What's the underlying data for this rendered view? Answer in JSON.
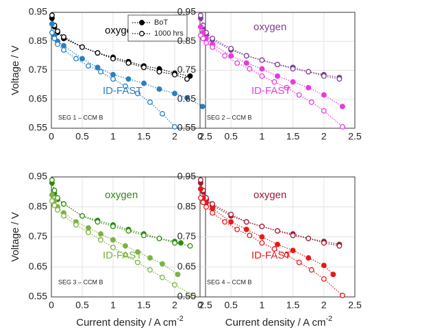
{
  "chart_data": [
    {
      "type": "line",
      "xlim": [
        0,
        2.5
      ],
      "ylim": [
        0.55,
        0.95
      ],
      "xticks": [
        0,
        0.5,
        1,
        1.5,
        2,
        2.5
      ],
      "yticks": [
        0.55,
        0.65,
        0.75,
        0.85,
        0.95
      ],
      "grid": true,
      "ylabel": "Voltage / V",
      "annotations": [
        "oxygen",
        "ID-FAST",
        "SEG 1 – CCM B"
      ],
      "legend": [
        {
          "name": "BoT",
          "marker": "filled",
          "color": "#000000"
        },
        {
          "name": "1000 hrs",
          "marker": "open",
          "color": "#000000"
        }
      ],
      "series": [
        {
          "color": "#000000",
          "marker": "filled",
          "x": [
            0.01,
            0.05,
            0.1,
            0.2,
            0.5,
            0.75,
            1.0,
            1.25,
            1.5,
            1.75,
            2.0,
            2.25
          ],
          "values": [
            0.93,
            0.9,
            0.88,
            0.86,
            0.83,
            0.81,
            0.795,
            0.78,
            0.765,
            0.755,
            0.74,
            0.73
          ]
        },
        {
          "color": "#000000",
          "marker": "open",
          "x": [
            0.01,
            0.05,
            0.1,
            0.2,
            0.5,
            0.75,
            1.0,
            1.25,
            1.5,
            1.75,
            2.0,
            2.2
          ],
          "values": [
            0.94,
            0.905,
            0.885,
            0.865,
            0.83,
            0.81,
            0.79,
            0.775,
            0.76,
            0.745,
            0.735,
            0.72
          ]
        },
        {
          "color": "#2a7fc0",
          "marker": "filled",
          "x": [
            0.01,
            0.05,
            0.1,
            0.2,
            0.5,
            0.75,
            1.0,
            1.25,
            1.5,
            1.75,
            2.0,
            2.2,
            2.45
          ],
          "values": [
            0.91,
            0.87,
            0.85,
            0.835,
            0.79,
            0.76,
            0.735,
            0.72,
            0.705,
            0.685,
            0.67,
            0.655,
            0.625
          ]
        },
        {
          "color": "#2a7fc0",
          "marker": "open",
          "x": [
            0.01,
            0.05,
            0.1,
            0.2,
            0.4,
            0.6,
            0.8,
            1.0,
            1.2,
            1.4,
            1.6,
            1.8,
            2.0
          ],
          "values": [
            0.88,
            0.86,
            0.84,
            0.82,
            0.79,
            0.765,
            0.745,
            0.72,
            0.695,
            0.67,
            0.64,
            0.6,
            0.555
          ]
        }
      ]
    },
    {
      "type": "line",
      "xlim": [
        0,
        2.5
      ],
      "ylim": [
        0.55,
        0.95
      ],
      "xticks": [
        0,
        0.5,
        1,
        1.5,
        2,
        2.5
      ],
      "yticks": [
        0.55,
        0.65,
        0.75,
        0.85,
        0.95
      ],
      "grid": true,
      "annotations": [
        "oxygen",
        "ID-FAST",
        "SEG 2 – CCM B"
      ],
      "series": [
        {
          "color": "#7b3f8f",
          "marker": "filled",
          "x": [
            0.01,
            0.05,
            0.1,
            0.2,
            0.5,
            0.75,
            1.0,
            1.25,
            1.5,
            1.75,
            2.0,
            2.25
          ],
          "values": [
            0.93,
            0.9,
            0.875,
            0.855,
            0.82,
            0.8,
            0.785,
            0.77,
            0.76,
            0.745,
            0.735,
            0.725
          ]
        },
        {
          "color": "#7b3f8f",
          "marker": "open",
          "x": [
            0.01,
            0.05,
            0.1,
            0.2,
            0.5,
            0.75,
            1.0,
            1.25,
            1.5,
            1.75,
            2.0,
            2.25
          ],
          "values": [
            0.94,
            0.905,
            0.88,
            0.86,
            0.825,
            0.8,
            0.785,
            0.77,
            0.755,
            0.745,
            0.73,
            0.72
          ]
        },
        {
          "color": "#e83ae0",
          "marker": "filled",
          "x": [
            0.01,
            0.05,
            0.1,
            0.2,
            0.5,
            0.75,
            1.0,
            1.25,
            1.5,
            1.75,
            2.0,
            2.3
          ],
          "values": [
            0.9,
            0.88,
            0.86,
            0.84,
            0.8,
            0.775,
            0.755,
            0.73,
            0.71,
            0.69,
            0.665,
            0.625
          ]
        },
        {
          "color": "#e83ae0",
          "marker": "open",
          "x": [
            0.01,
            0.05,
            0.1,
            0.2,
            0.4,
            0.6,
            0.8,
            1.0,
            1.2,
            1.4,
            1.6,
            1.8,
            2.0,
            2.3
          ],
          "values": [
            0.87,
            0.86,
            0.845,
            0.83,
            0.8,
            0.775,
            0.755,
            0.73,
            0.71,
            0.69,
            0.665,
            0.64,
            0.61,
            0.555
          ]
        }
      ]
    },
    {
      "type": "line",
      "xlim": [
        0,
        2.5
      ],
      "ylim": [
        0.55,
        0.95
      ],
      "xticks": [
        0,
        0.5,
        1,
        1.5,
        2,
        2.5
      ],
      "yticks": [
        0.55,
        0.65,
        0.75,
        0.85,
        0.95
      ],
      "grid": true,
      "ylabel": "Voltage / V",
      "xlabel": "Current density / A cm",
      "xlabel_sup": "-2",
      "annotations": [
        "oxygen",
        "ID-FAST",
        "SEG 3 – CCM B"
      ],
      "series": [
        {
          "color": "#2e8b10",
          "marker": "filled",
          "x": [
            0.01,
            0.05,
            0.1,
            0.2,
            0.5,
            0.75,
            1.0,
            1.25,
            1.5,
            1.75,
            2.0,
            2.1
          ],
          "values": [
            0.93,
            0.895,
            0.875,
            0.86,
            0.82,
            0.805,
            0.79,
            0.775,
            0.76,
            0.745,
            0.735,
            0.73
          ]
        },
        {
          "color": "#2e8b10",
          "marker": "open",
          "x": [
            0.01,
            0.05,
            0.1,
            0.2,
            0.5,
            0.75,
            1.0,
            1.25,
            1.5,
            1.75,
            2.0,
            2.25
          ],
          "values": [
            0.94,
            0.905,
            0.88,
            0.86,
            0.82,
            0.8,
            0.785,
            0.77,
            0.755,
            0.745,
            0.73,
            0.72
          ]
        },
        {
          "color": "#7cb342",
          "marker": "filled",
          "x": [
            0.01,
            0.05,
            0.1,
            0.2,
            0.4,
            0.6,
            0.8,
            1.0,
            1.2,
            1.4,
            1.6,
            1.8,
            2.05
          ],
          "values": [
            0.89,
            0.87,
            0.85,
            0.83,
            0.8,
            0.78,
            0.76,
            0.74,
            0.72,
            0.7,
            0.68,
            0.66,
            0.625
          ]
        },
        {
          "color": "#7cb342",
          "marker": "open",
          "x": [
            0.01,
            0.05,
            0.1,
            0.2,
            0.4,
            0.6,
            0.8,
            1.0,
            1.2,
            1.4,
            1.6,
            1.8,
            2.0,
            2.3
          ],
          "values": [
            0.87,
            0.855,
            0.84,
            0.82,
            0.79,
            0.765,
            0.74,
            0.715,
            0.69,
            0.665,
            0.64,
            0.615,
            0.59,
            0.555
          ]
        }
      ]
    },
    {
      "type": "line",
      "xlim": [
        0,
        2.5
      ],
      "ylim": [
        0.55,
        0.95
      ],
      "xticks": [
        0,
        0.5,
        1,
        1.5,
        2,
        2.5
      ],
      "yticks": [
        0.55,
        0.65,
        0.75,
        0.85,
        0.95
      ],
      "grid": true,
      "xlabel": "Current density / A cm",
      "xlabel_sup": "-2",
      "annotations": [
        "oxygen",
        "ID-FAST",
        "SEG 4 – CCM B"
      ],
      "series": [
        {
          "color": "#a0182e",
          "marker": "filled",
          "x": [
            0.01,
            0.05,
            0.1,
            0.2,
            0.5,
            0.75,
            1.0,
            1.25,
            1.5,
            1.75,
            2.0,
            2.25
          ],
          "values": [
            0.93,
            0.9,
            0.875,
            0.855,
            0.82,
            0.8,
            0.785,
            0.77,
            0.76,
            0.745,
            0.735,
            0.725
          ]
        },
        {
          "color": "#a0182e",
          "marker": "open",
          "x": [
            0.01,
            0.05,
            0.1,
            0.2,
            0.5,
            0.75,
            1.0,
            1.25,
            1.5,
            1.75,
            2.0,
            2.25
          ],
          "values": [
            0.94,
            0.905,
            0.88,
            0.86,
            0.825,
            0.8,
            0.785,
            0.77,
            0.755,
            0.745,
            0.73,
            0.72
          ]
        },
        {
          "color": "#e81818",
          "marker": "filled",
          "x": [
            0.01,
            0.05,
            0.1,
            0.2,
            0.5,
            0.75,
            1.0,
            1.25,
            1.5,
            1.75,
            2.0,
            2.15
          ],
          "values": [
            0.91,
            0.88,
            0.865,
            0.845,
            0.8,
            0.775,
            0.75,
            0.725,
            0.705,
            0.68,
            0.655,
            0.625
          ]
        },
        {
          "color": "#e81818",
          "marker": "open",
          "x": [
            0.01,
            0.05,
            0.1,
            0.2,
            0.4,
            0.6,
            0.8,
            1.0,
            1.2,
            1.4,
            1.6,
            1.8,
            2.0,
            2.3
          ],
          "values": [
            0.88,
            0.865,
            0.85,
            0.83,
            0.8,
            0.775,
            0.755,
            0.73,
            0.71,
            0.69,
            0.665,
            0.64,
            0.61,
            0.555
          ]
        }
      ]
    }
  ]
}
